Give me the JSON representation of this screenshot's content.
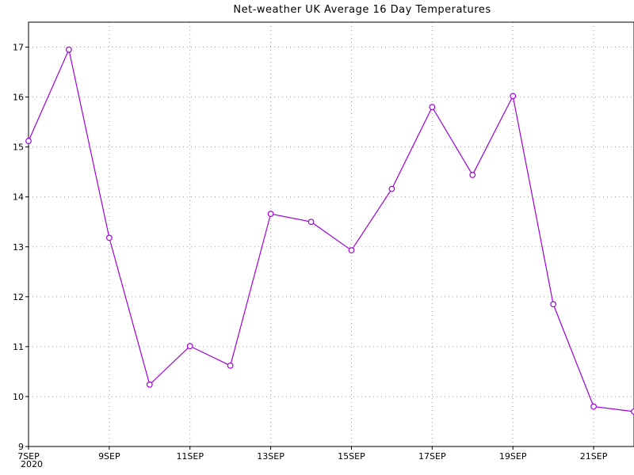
{
  "chart_data": {
    "type": "line",
    "title": "Net-weather UK Average 16 Day Temperatures",
    "x": [
      "7SEP",
      "8SEP",
      "9SEP",
      "10SEP",
      "11SEP",
      "12SEP",
      "13SEP",
      "14SEP",
      "15SEP",
      "16SEP",
      "17SEP",
      "18SEP",
      "19SEP",
      "20SEP",
      "21SEP",
      "22SEP"
    ],
    "x_tick_labels": [
      "7SEP",
      "9SEP",
      "11SEP",
      "13SEP",
      "15SEP",
      "17SEP",
      "19SEP",
      "21SEP"
    ],
    "x_tick_indices": [
      0,
      2,
      4,
      6,
      8,
      10,
      12,
      14
    ],
    "year_label": "2020",
    "series": [
      {
        "values": [
          15.12,
          16.95,
          13.18,
          10.24,
          11.01,
          10.62,
          13.66,
          13.5,
          12.93,
          14.16,
          15.8,
          14.44,
          16.02,
          11.85,
          9.8,
          9.7
        ]
      }
    ],
    "yticks": [
      9,
      10,
      11,
      12,
      13,
      14,
      15,
      16,
      17
    ],
    "ylim": [
      9,
      17.5
    ],
    "xlim": [
      0,
      15
    ],
    "grid": true,
    "colors": {
      "series": "#a000d8",
      "grid": "#9a9a9a",
      "axis": "#000000"
    }
  }
}
